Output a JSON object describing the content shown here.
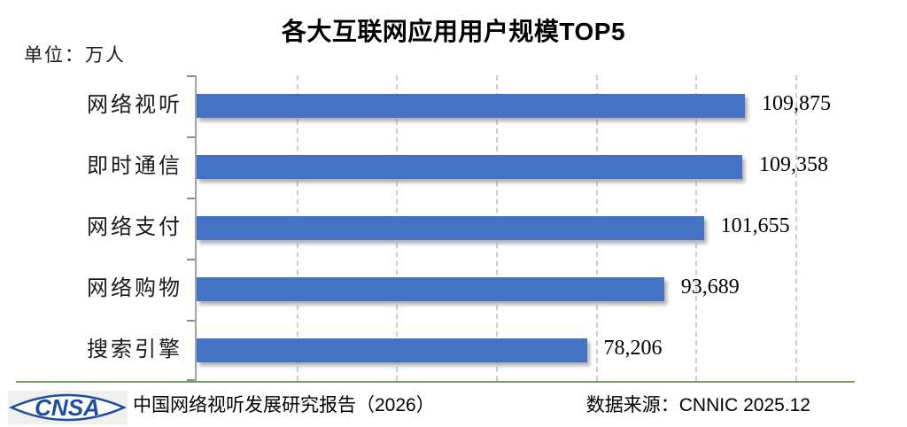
{
  "title": "各大互联网应用用户规模TOP5",
  "unit_label": "单位：万人",
  "colors": {
    "bar": "#4472C4",
    "gridline": "#cdcdcd",
    "axis": "#a3a3a3",
    "separator_green": "#7a9a68",
    "logo_blue": "#1d4f9e"
  },
  "chart_data": {
    "type": "bar",
    "orientation": "horizontal",
    "title": "各大互联网应用用户规模TOP5",
    "unit": "万人",
    "categories": [
      "网络视听",
      "即时通信",
      "网络支付",
      "网络购物",
      "搜索引擎"
    ],
    "values": [
      109875,
      109358,
      101655,
      93689,
      78206
    ],
    "value_labels": [
      "109,875",
      "109,358",
      "101,655",
      "93,689",
      "78,206"
    ],
    "xlabel": "",
    "ylabel": "",
    "xlim": [
      0,
      120000
    ],
    "gridline_interval": 20000,
    "grid": true,
    "legend": false
  },
  "footer": {
    "logo_text": "CNSA",
    "report_label": "中国网络视听发展研究报告（2026）",
    "source_label": "数据来源：CNNIC 2025.12"
  }
}
